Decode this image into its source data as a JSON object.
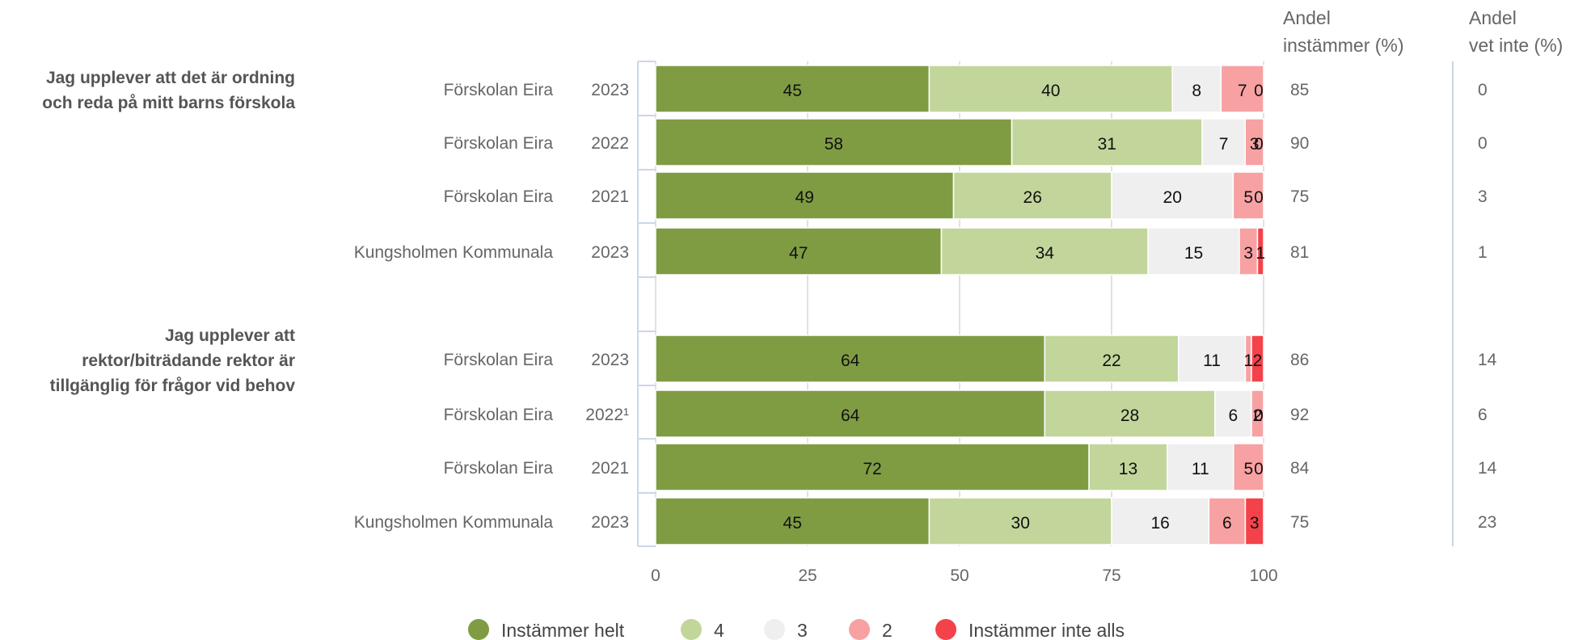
{
  "chart_data": {
    "type": "bar",
    "orientation": "horizontal",
    "stacked": true,
    "xlim": [
      0,
      100
    ],
    "xticks": [
      0,
      25,
      50,
      75,
      100
    ],
    "grid": true,
    "legend_position": "bottom",
    "series": [
      {
        "name": "Instämmer helt",
        "color": "#7f9c43"
      },
      {
        "name": "4",
        "color": "#c2d69b"
      },
      {
        "name": "3",
        "color": "#efefef"
      },
      {
        "name": "2",
        "color": "#f7a1a3"
      },
      {
        "name": "Instämmer inte alls",
        "color": "#f4424b"
      }
    ],
    "column_headers": [
      {
        "line1": "Andel",
        "line2": "instämmer (%)"
      },
      {
        "line1": "Andel",
        "line2": "vet inte (%)"
      }
    ],
    "groups": [
      {
        "question_lines": [
          "Jag upplever att det är ordning",
          "och reda på mitt barns förskola"
        ],
        "rows": [
          {
            "unit": "Förskolan Eira",
            "year": "2023",
            "values": [
              45,
              40,
              8,
              7,
              0
            ],
            "andel_instammer": "85",
            "andel_vet_inte": "0"
          },
          {
            "unit": "Förskolan Eira",
            "year": "2022",
            "values": [
              58,
              31,
              7,
              3,
              0
            ],
            "andel_instammer": "90",
            "andel_vet_inte": "0"
          },
          {
            "unit": "Förskolan Eira",
            "year": "2021",
            "values": [
              49,
              26,
              20,
              5,
              0
            ],
            "andel_instammer": "75",
            "andel_vet_inte": "3"
          },
          {
            "unit": "Kungsholmen Kommunala",
            "year": "2023",
            "values": [
              47,
              34,
              15,
              3,
              1
            ],
            "andel_instammer": "81",
            "andel_vet_inte": "1"
          }
        ]
      },
      {
        "question_lines": [
          "Jag upplever att",
          "rektor/biträdande rektor är",
          "tillgänglig för frågor vid behov"
        ],
        "rows": [
          {
            "unit": "Förskolan Eira",
            "year": "2023",
            "values": [
              64,
              22,
              11,
              1,
              2
            ],
            "andel_instammer": "86",
            "andel_vet_inte": "14"
          },
          {
            "unit": "Förskolan Eira",
            "year": "2022¹",
            "values": [
              64,
              28,
              6,
              2,
              0
            ],
            "andel_instammer": "92",
            "andel_vet_inte": "6"
          },
          {
            "unit": "Förskolan Eira",
            "year": "2021",
            "values": [
              72,
              13,
              11,
              5,
              0
            ],
            "andel_instammer": "84",
            "andel_vet_inte": "14"
          },
          {
            "unit": "Kungsholmen Kommunala",
            "year": "2023",
            "values": [
              45,
              30,
              16,
              6,
              3
            ],
            "andel_instammer": "75",
            "andel_vet_inte": "23"
          }
        ]
      }
    ]
  }
}
